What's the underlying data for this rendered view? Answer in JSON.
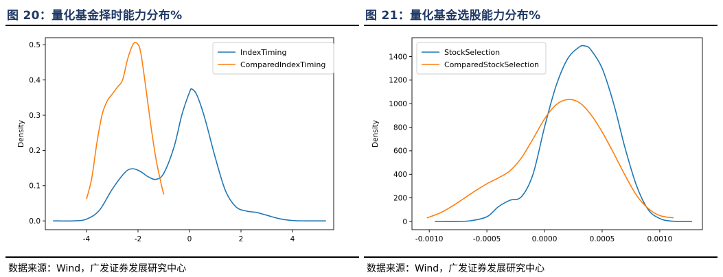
{
  "panels": [
    {
      "figure_title": "图 20：量化基金择时能力分布%",
      "source": "数据来源：Wind，广发证券发展研究中心"
    },
    {
      "figure_title": "图 21：量化基金选股能力分布%",
      "source": "数据来源：Wind，广发证券发展研究中心"
    }
  ],
  "colors": {
    "blue": "#1f77b4",
    "orange": "#ff7f0e",
    "title": "#1f3864"
  },
  "chart_data": [
    {
      "type": "line",
      "title": "",
      "xlabel": "",
      "ylabel": "Density",
      "xlim": [
        -5.6,
        5.6
      ],
      "ylim": [
        -0.025,
        0.52
      ],
      "xticks": [
        -4,
        -2,
        0,
        2,
        4
      ],
      "xtick_labels": [
        "-4",
        "-2",
        "0",
        "2",
        "4"
      ],
      "yticks": [
        0.0,
        0.1,
        0.2,
        0.3,
        0.4,
        0.5
      ],
      "ytick_labels": [
        "0.0",
        "0.1",
        "0.2",
        "0.3",
        "0.4",
        "0.5"
      ],
      "legend": "top-right",
      "grid": false,
      "series": [
        {
          "name": "IndexTiming",
          "color": "#1f77b4",
          "x": [
            -5.3,
            -4.5,
            -4.0,
            -3.5,
            -3.0,
            -2.5,
            -2.2,
            -1.9,
            -1.6,
            -1.3,
            -1.0,
            -0.6,
            -0.3,
            0.0,
            0.1,
            0.3,
            0.6,
            1.0,
            1.4,
            1.8,
            2.2,
            2.6,
            3.0,
            3.5,
            4.0,
            4.5,
            5.3
          ],
          "y": [
            0.0,
            0.0,
            0.005,
            0.03,
            0.09,
            0.138,
            0.148,
            0.14,
            0.125,
            0.118,
            0.135,
            0.21,
            0.3,
            0.365,
            0.374,
            0.355,
            0.29,
            0.18,
            0.085,
            0.04,
            0.028,
            0.024,
            0.016,
            0.006,
            0.001,
            0.0,
            0.0
          ]
        },
        {
          "name": "ComparedIndexTiming",
          "color": "#ff7f0e",
          "x": [
            -4.0,
            -3.8,
            -3.6,
            -3.4,
            -3.2,
            -3.0,
            -2.8,
            -2.6,
            -2.4,
            -2.2,
            -2.05,
            -1.9,
            -1.7,
            -1.5,
            -1.3,
            -1.1,
            -1.0
          ],
          "y": [
            0.062,
            0.12,
            0.22,
            0.3,
            0.34,
            0.36,
            0.38,
            0.4,
            0.46,
            0.5,
            0.505,
            0.48,
            0.38,
            0.27,
            0.175,
            0.105,
            0.075
          ]
        }
      ]
    },
    {
      "type": "line",
      "title": "",
      "xlabel": "",
      "ylabel": "Density",
      "xlim": [
        -0.00115,
        0.00137
      ],
      "ylim": [
        -70,
        1560
      ],
      "xticks": [
        -0.001,
        -0.0005,
        0.0,
        0.0005,
        0.001
      ],
      "xtick_labels": [
        "-0.0010",
        "-0.0005",
        "0.0000",
        "0.0005",
        "0.0010"
      ],
      "yticks": [
        0,
        200,
        400,
        600,
        800,
        1000,
        1200,
        1400
      ],
      "ytick_labels": [
        "0",
        "200",
        "400",
        "600",
        "800",
        "1000",
        "1200",
        "1400"
      ],
      "legend": "top-left",
      "grid": false,
      "series": [
        {
          "name": "StockSelection",
          "color": "#1f77b4",
          "x": [
            -0.00095,
            -0.0008,
            -0.00065,
            -0.0005,
            -0.0004,
            -0.0003,
            -0.0002,
            -0.0001,
            0.0,
            0.0001,
            0.0002,
            0.0003,
            0.00035,
            0.0004,
            0.0005,
            0.0006,
            0.0007,
            0.0008,
            0.0009,
            0.001,
            0.0011,
            0.00128
          ],
          "y": [
            0.0,
            0.0,
            5.0,
            40.0,
            125.0,
            180.0,
            210.0,
            400.0,
            800.0,
            1150.0,
            1380.0,
            1480.0,
            1490.0,
            1460.0,
            1300.0,
            1000.0,
            620.0,
            300.0,
            100.0,
            25.0,
            3.0,
            0.0
          ]
        },
        {
          "name": "ComparedStockSelection",
          "color": "#ff7f0e",
          "x": [
            -0.00102,
            -0.0009,
            -0.0008,
            -0.0007,
            -0.0006,
            -0.0005,
            -0.0004,
            -0.0003,
            -0.0002,
            -0.0001,
            0.0,
            0.0001,
            0.0002,
            0.0003,
            0.0004,
            0.0005,
            0.0006,
            0.0007,
            0.0008,
            0.0009,
            0.001,
            0.00112
          ],
          "y": [
            30.0,
            75.0,
            130.0,
            195.0,
            260.0,
            320.0,
            370.0,
            430.0,
            540.0,
            700.0,
            870.0,
            990.0,
            1035.0,
            1010.0,
            910.0,
            760.0,
            580.0,
            390.0,
            220.0,
            110.0,
            50.0,
            30.0
          ]
        }
      ]
    }
  ]
}
